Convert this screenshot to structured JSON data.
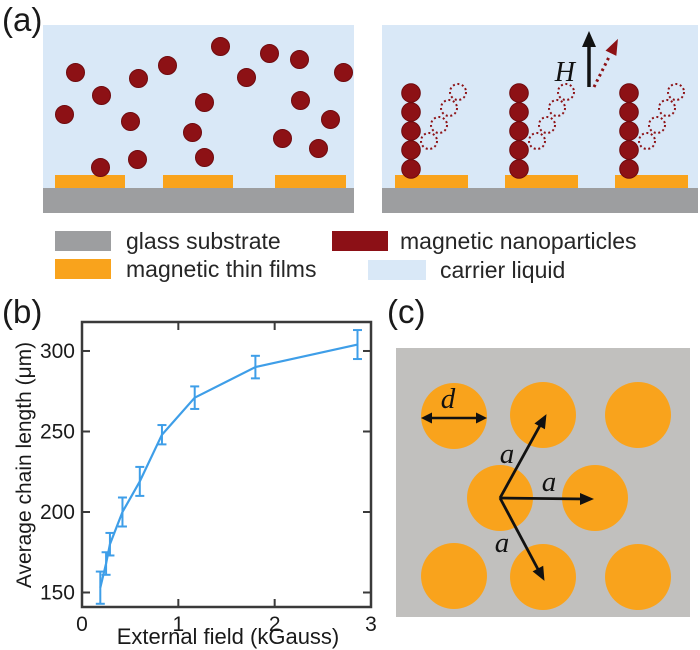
{
  "panels": {
    "a_label": "(a)",
    "b_label": "(b)",
    "c_label": "(c)"
  },
  "legend": {
    "items": [
      {
        "label": "glass substrate",
        "color": "#9d9ea0"
      },
      {
        "label": "magnetic nanoparticles",
        "color": "#8c1016"
      },
      {
        "label": "magnetic thin films",
        "color": "#f9a31c"
      },
      {
        "label": "carrier liquid",
        "color": "#d9e8f7"
      }
    ]
  },
  "diagram_a": {
    "field_label": "H"
  },
  "diagram_c": {
    "diameter_label": "d",
    "spacing_label_1": "a",
    "spacing_label_2": "a",
    "spacing_label_3": "a"
  },
  "chart_data": {
    "type": "line",
    "title": "",
    "xlabel": "External field (kGauss)",
    "ylabel": "Average chain length (μm)",
    "xlim": [
      0,
      3
    ],
    "ylim": [
      141,
      318
    ],
    "xticks": [
      0,
      1,
      2,
      3
    ],
    "yticks": [
      150,
      200,
      250,
      300
    ],
    "grid": false,
    "legend_position": "none",
    "series": [
      {
        "name": "average chain length",
        "x": [
          0.19,
          0.25,
          0.29,
          0.42,
          0.6,
          0.83,
          1.17,
          1.8,
          2.86
        ],
        "y": [
          153,
          168,
          180,
          200,
          219,
          248,
          271,
          290,
          304
        ],
        "yerr": [
          10,
          7,
          7,
          9,
          9,
          6,
          7,
          7,
          9
        ],
        "color": "#3e9ee8"
      }
    ]
  },
  "colors": {
    "liquid": "#d9e8f7",
    "particle": "#8d1115",
    "particle_edge": "#6f0a0e",
    "film": "#f9a31c",
    "substrate": "#9d9ea0",
    "panel_c_bg": "#c1c0be",
    "chart_line": "#3e9ee8",
    "axis": "#3a3a3a",
    "ink": "#111111"
  }
}
